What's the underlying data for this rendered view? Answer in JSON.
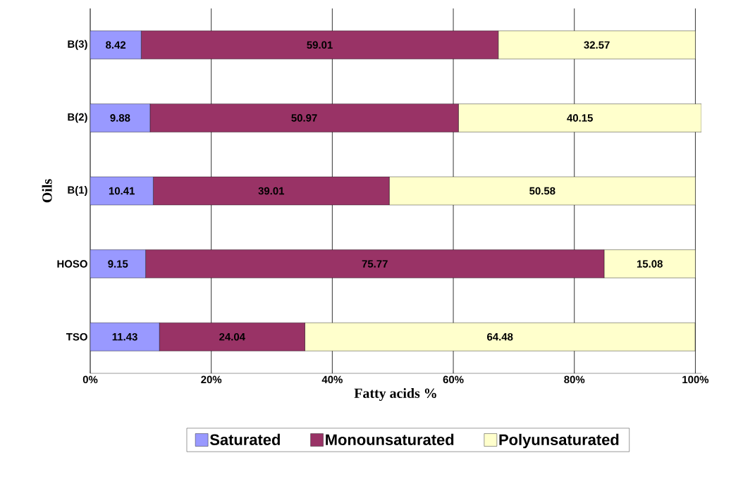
{
  "chart_data": {
    "type": "bar",
    "orientation": "horizontal",
    "stacked": true,
    "categories": [
      "B(3)",
      "B(2)",
      "B(1)",
      "HOSO",
      "TSO"
    ],
    "series": [
      {
        "name": "Saturated",
        "color": "#9999ff",
        "values": [
          8.42,
          9.88,
          10.41,
          9.15,
          11.43
        ],
        "value_labels": [
          "8.42",
          "9.88",
          "10.41",
          "9.15",
          "11.43"
        ]
      },
      {
        "name": "Monounsaturated",
        "color": "#993366",
        "values": [
          59.01,
          50.97,
          39.01,
          75.77,
          24.04
        ],
        "value_labels": [
          "59.01",
          "50.97",
          "39.01",
          "75.77",
          "24.04"
        ]
      },
      {
        "name": "Polyunsaturated",
        "color": "#ffffcc",
        "values": [
          32.57,
          40.15,
          50.58,
          15.08,
          64.48
        ],
        "value_labels": [
          "32.57",
          "40.15",
          "50.58",
          "15.08",
          "64.48"
        ]
      }
    ],
    "xlabel": "Fatty acids %",
    "ylabel": "Oils",
    "xlim": [
      0,
      101
    ],
    "xticks": [
      {
        "value": 0,
        "label": "0%"
      },
      {
        "value": 20,
        "label": "20%"
      },
      {
        "value": 40,
        "label": "40%"
      },
      {
        "value": 60,
        "label": "60%"
      },
      {
        "value": 80,
        "label": "80%"
      },
      {
        "value": 100,
        "label": "100%"
      }
    ],
    "grid": "x",
    "legend": "bottom"
  }
}
